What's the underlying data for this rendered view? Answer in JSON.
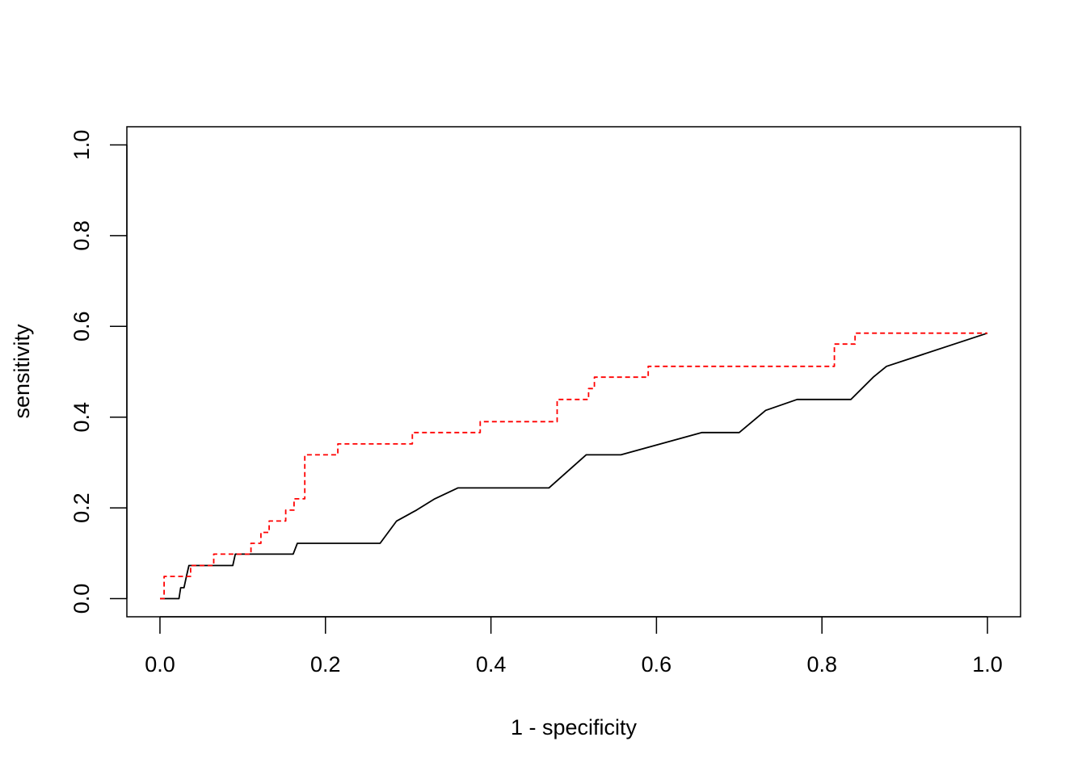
{
  "chart_data": {
    "type": "line",
    "title": "",
    "xlabel": "1 - specificity",
    "ylabel": "sensitivity",
    "xlim": [
      -0.04,
      1.04
    ],
    "ylim": [
      -0.04,
      1.04
    ],
    "xticks": [
      0.0,
      0.2,
      0.4,
      0.6,
      0.8,
      1.0
    ],
    "yticks": [
      0.0,
      0.2,
      0.4,
      0.6,
      0.8,
      1.0
    ],
    "xtick_labels": [
      "0.0",
      "0.2",
      "0.4",
      "0.6",
      "0.8",
      "1.0"
    ],
    "ytick_labels": [
      "0.0",
      "0.2",
      "0.4",
      "0.6",
      "0.8",
      "1.0"
    ],
    "grid": false,
    "legend": "none",
    "series": [
      {
        "color": "#000000",
        "style": "solid",
        "x": [
          0.0,
          0.023,
          0.025,
          0.029,
          0.032,
          0.035,
          0.088,
          0.091,
          0.161,
          0.166,
          0.266,
          0.286,
          0.31,
          0.332,
          0.36,
          0.47,
          0.515,
          0.557,
          0.655,
          0.7,
          0.732,
          0.77,
          0.835,
          0.862,
          0.878,
          1.0
        ],
        "y": [
          0.0,
          0.0,
          0.024,
          0.024,
          0.049,
          0.073,
          0.073,
          0.098,
          0.098,
          0.122,
          0.122,
          0.171,
          0.195,
          0.22,
          0.244,
          0.244,
          0.317,
          0.317,
          0.366,
          0.366,
          0.415,
          0.439,
          0.439,
          0.488,
          0.512,
          0.585
        ]
      },
      {
        "color": "#ff0000",
        "style": "dashed",
        "x": [
          0.0,
          0.005,
          0.005,
          0.026,
          0.026,
          0.037,
          0.037,
          0.065,
          0.065,
          0.11,
          0.11,
          0.122,
          0.122,
          0.132,
          0.132,
          0.152,
          0.152,
          0.162,
          0.162,
          0.175,
          0.175,
          0.215,
          0.215,
          0.305,
          0.305,
          0.387,
          0.387,
          0.48,
          0.48,
          0.518,
          0.518,
          0.525,
          0.525,
          0.59,
          0.59,
          0.815,
          0.815,
          0.84,
          0.84,
          1.0
        ],
        "y": [
          0.0,
          0.0,
          0.049,
          0.049,
          0.049,
          0.049,
          0.073,
          0.073,
          0.098,
          0.098,
          0.122,
          0.122,
          0.146,
          0.146,
          0.171,
          0.171,
          0.195,
          0.195,
          0.22,
          0.22,
          0.317,
          0.317,
          0.341,
          0.341,
          0.366,
          0.366,
          0.39,
          0.39,
          0.439,
          0.439,
          0.463,
          0.463,
          0.488,
          0.488,
          0.512,
          0.512,
          0.561,
          0.561,
          0.585,
          0.585
        ]
      }
    ]
  }
}
